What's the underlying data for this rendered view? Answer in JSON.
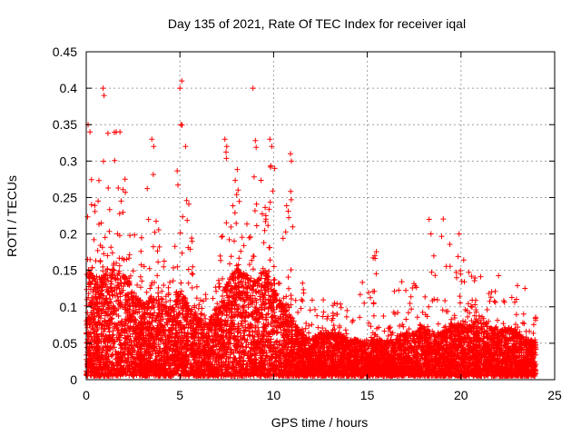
{
  "chart_data": {
    "type": "scatter",
    "title": "Day 135 of 2021, Rate Of TEC Index for receiver iqal",
    "xlabel": "GPS time / hours",
    "ylabel": "ROTI / TECUs",
    "xlim": [
      0,
      25
    ],
    "ylim": [
      0,
      0.45
    ],
    "xticks": [
      0,
      5,
      10,
      15,
      20,
      25
    ],
    "yticks": [
      0,
      0.05,
      0.1,
      0.15,
      0.2,
      0.25,
      0.3,
      0.35,
      0.4,
      0.45
    ],
    "grid": true,
    "marker": "+",
    "color": "#ff0000",
    "series": [
      {
        "name": "ROTI",
        "envelope_hours": [
          0,
          0.2,
          0.5,
          1,
          1.5,
          2,
          2.5,
          3,
          3.5,
          4,
          4.5,
          5,
          5.5,
          6,
          6.5,
          7,
          7.5,
          8,
          8.5,
          9,
          9.5,
          10,
          10.5,
          11,
          11.5,
          12,
          12.5,
          13,
          13.5,
          14,
          14.5,
          15,
          15.5,
          16,
          16.5,
          17,
          17.5,
          18,
          18.5,
          19,
          19.5,
          20,
          20.5,
          21,
          21.5,
          22,
          22.5,
          23,
          23.5,
          24
        ],
        "envelope_typical": [
          0.12,
          0.16,
          0.13,
          0.14,
          0.15,
          0.14,
          0.12,
          0.1,
          0.11,
          0.1,
          0.09,
          0.12,
          0.1,
          0.08,
          0.07,
          0.09,
          0.13,
          0.15,
          0.14,
          0.13,
          0.15,
          0.12,
          0.1,
          0.08,
          0.06,
          0.05,
          0.06,
          0.06,
          0.06,
          0.05,
          0.05,
          0.05,
          0.05,
          0.05,
          0.05,
          0.06,
          0.06,
          0.07,
          0.06,
          0.06,
          0.07,
          0.07,
          0.07,
          0.08,
          0.07,
          0.06,
          0.07,
          0.06,
          0.05,
          0.05
        ],
        "envelope_peak": [
          0.22,
          0.35,
          0.3,
          0.4,
          0.34,
          0.3,
          0.22,
          0.2,
          0.33,
          0.19,
          0.16,
          0.41,
          0.24,
          0.12,
          0.12,
          0.13,
          0.33,
          0.3,
          0.25,
          0.4,
          0.3,
          0.33,
          0.26,
          0.31,
          0.14,
          0.12,
          0.13,
          0.12,
          0.11,
          0.1,
          0.12,
          0.16,
          0.18,
          0.12,
          0.14,
          0.14,
          0.14,
          0.14,
          0.22,
          0.23,
          0.18,
          0.2,
          0.14,
          0.17,
          0.14,
          0.15,
          0.16,
          0.13,
          0.13,
          0.1
        ],
        "notable_points": [
          {
            "x": 0.1,
            "y": 0.35
          },
          {
            "x": 0.2,
            "y": 0.34
          },
          {
            "x": 0.9,
            "y": 0.4
          },
          {
            "x": 0.95,
            "y": 0.39
          },
          {
            "x": 1.6,
            "y": 0.34
          },
          {
            "x": 1.8,
            "y": 0.34
          },
          {
            "x": 3.5,
            "y": 0.33
          },
          {
            "x": 3.6,
            "y": 0.32
          },
          {
            "x": 5.0,
            "y": 0.4
          },
          {
            "x": 5.1,
            "y": 0.41
          },
          {
            "x": 5.05,
            "y": 0.35
          },
          {
            "x": 5.3,
            "y": 0.32
          },
          {
            "x": 7.4,
            "y": 0.33
          },
          {
            "x": 7.5,
            "y": 0.32
          },
          {
            "x": 8.9,
            "y": 0.4
          },
          {
            "x": 9.8,
            "y": 0.33
          },
          {
            "x": 9.9,
            "y": 0.32
          },
          {
            "x": 10.9,
            "y": 0.31
          },
          {
            "x": 10.95,
            "y": 0.3
          },
          {
            "x": 15.4,
            "y": 0.17
          },
          {
            "x": 18.3,
            "y": 0.22
          },
          {
            "x": 18.4,
            "y": 0.2
          },
          {
            "x": 19.9,
            "y": 0.2
          }
        ],
        "floor": 0.005
      }
    ]
  }
}
